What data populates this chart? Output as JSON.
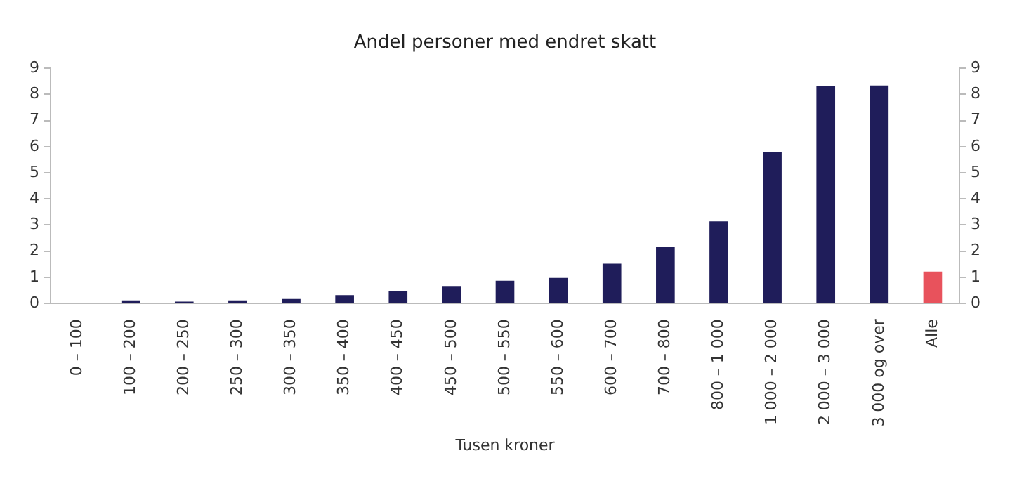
{
  "chart_data": {
    "type": "bar",
    "title": "Andel personer med endret skatt",
    "xlabel": "Tusen kroner",
    "categories": [
      "0 – 100",
      "100 – 200",
      "200 – 250",
      "250 – 300",
      "300 – 350",
      "350 – 400",
      "400 – 450",
      "450 – 500",
      "500 – 550",
      "550 – 600",
      "600 – 700",
      "700 – 800",
      "800 – 1 000",
      "1 000 – 2 000",
      "2 000 – 3 000",
      "3 000 og over",
      "Alle"
    ],
    "values": [
      0,
      0.12,
      0.07,
      0.12,
      0.17,
      0.32,
      0.47,
      0.67,
      0.87,
      0.98,
      1.52,
      2.17,
      3.14,
      5.79,
      8.31,
      8.34,
      1.22
    ],
    "colors": [
      "#1f1d5a",
      "#1f1d5a",
      "#1f1d5a",
      "#1f1d5a",
      "#1f1d5a",
      "#1f1d5a",
      "#1f1d5a",
      "#1f1d5a",
      "#1f1d5a",
      "#1f1d5a",
      "#1f1d5a",
      "#1f1d5a",
      "#1f1d5a",
      "#1f1d5a",
      "#1f1d5a",
      "#1f1d5a",
      "#e8525c"
    ],
    "ylim": [
      0,
      9
    ],
    "yticks": [
      0,
      1,
      2,
      3,
      4,
      5,
      6,
      7,
      8,
      9
    ],
    "y2lim": [
      0,
      9
    ],
    "y2ticks": [
      0,
      1,
      2,
      3,
      4,
      5,
      6,
      7,
      8,
      9
    ],
    "grid": false,
    "legend": false
  }
}
